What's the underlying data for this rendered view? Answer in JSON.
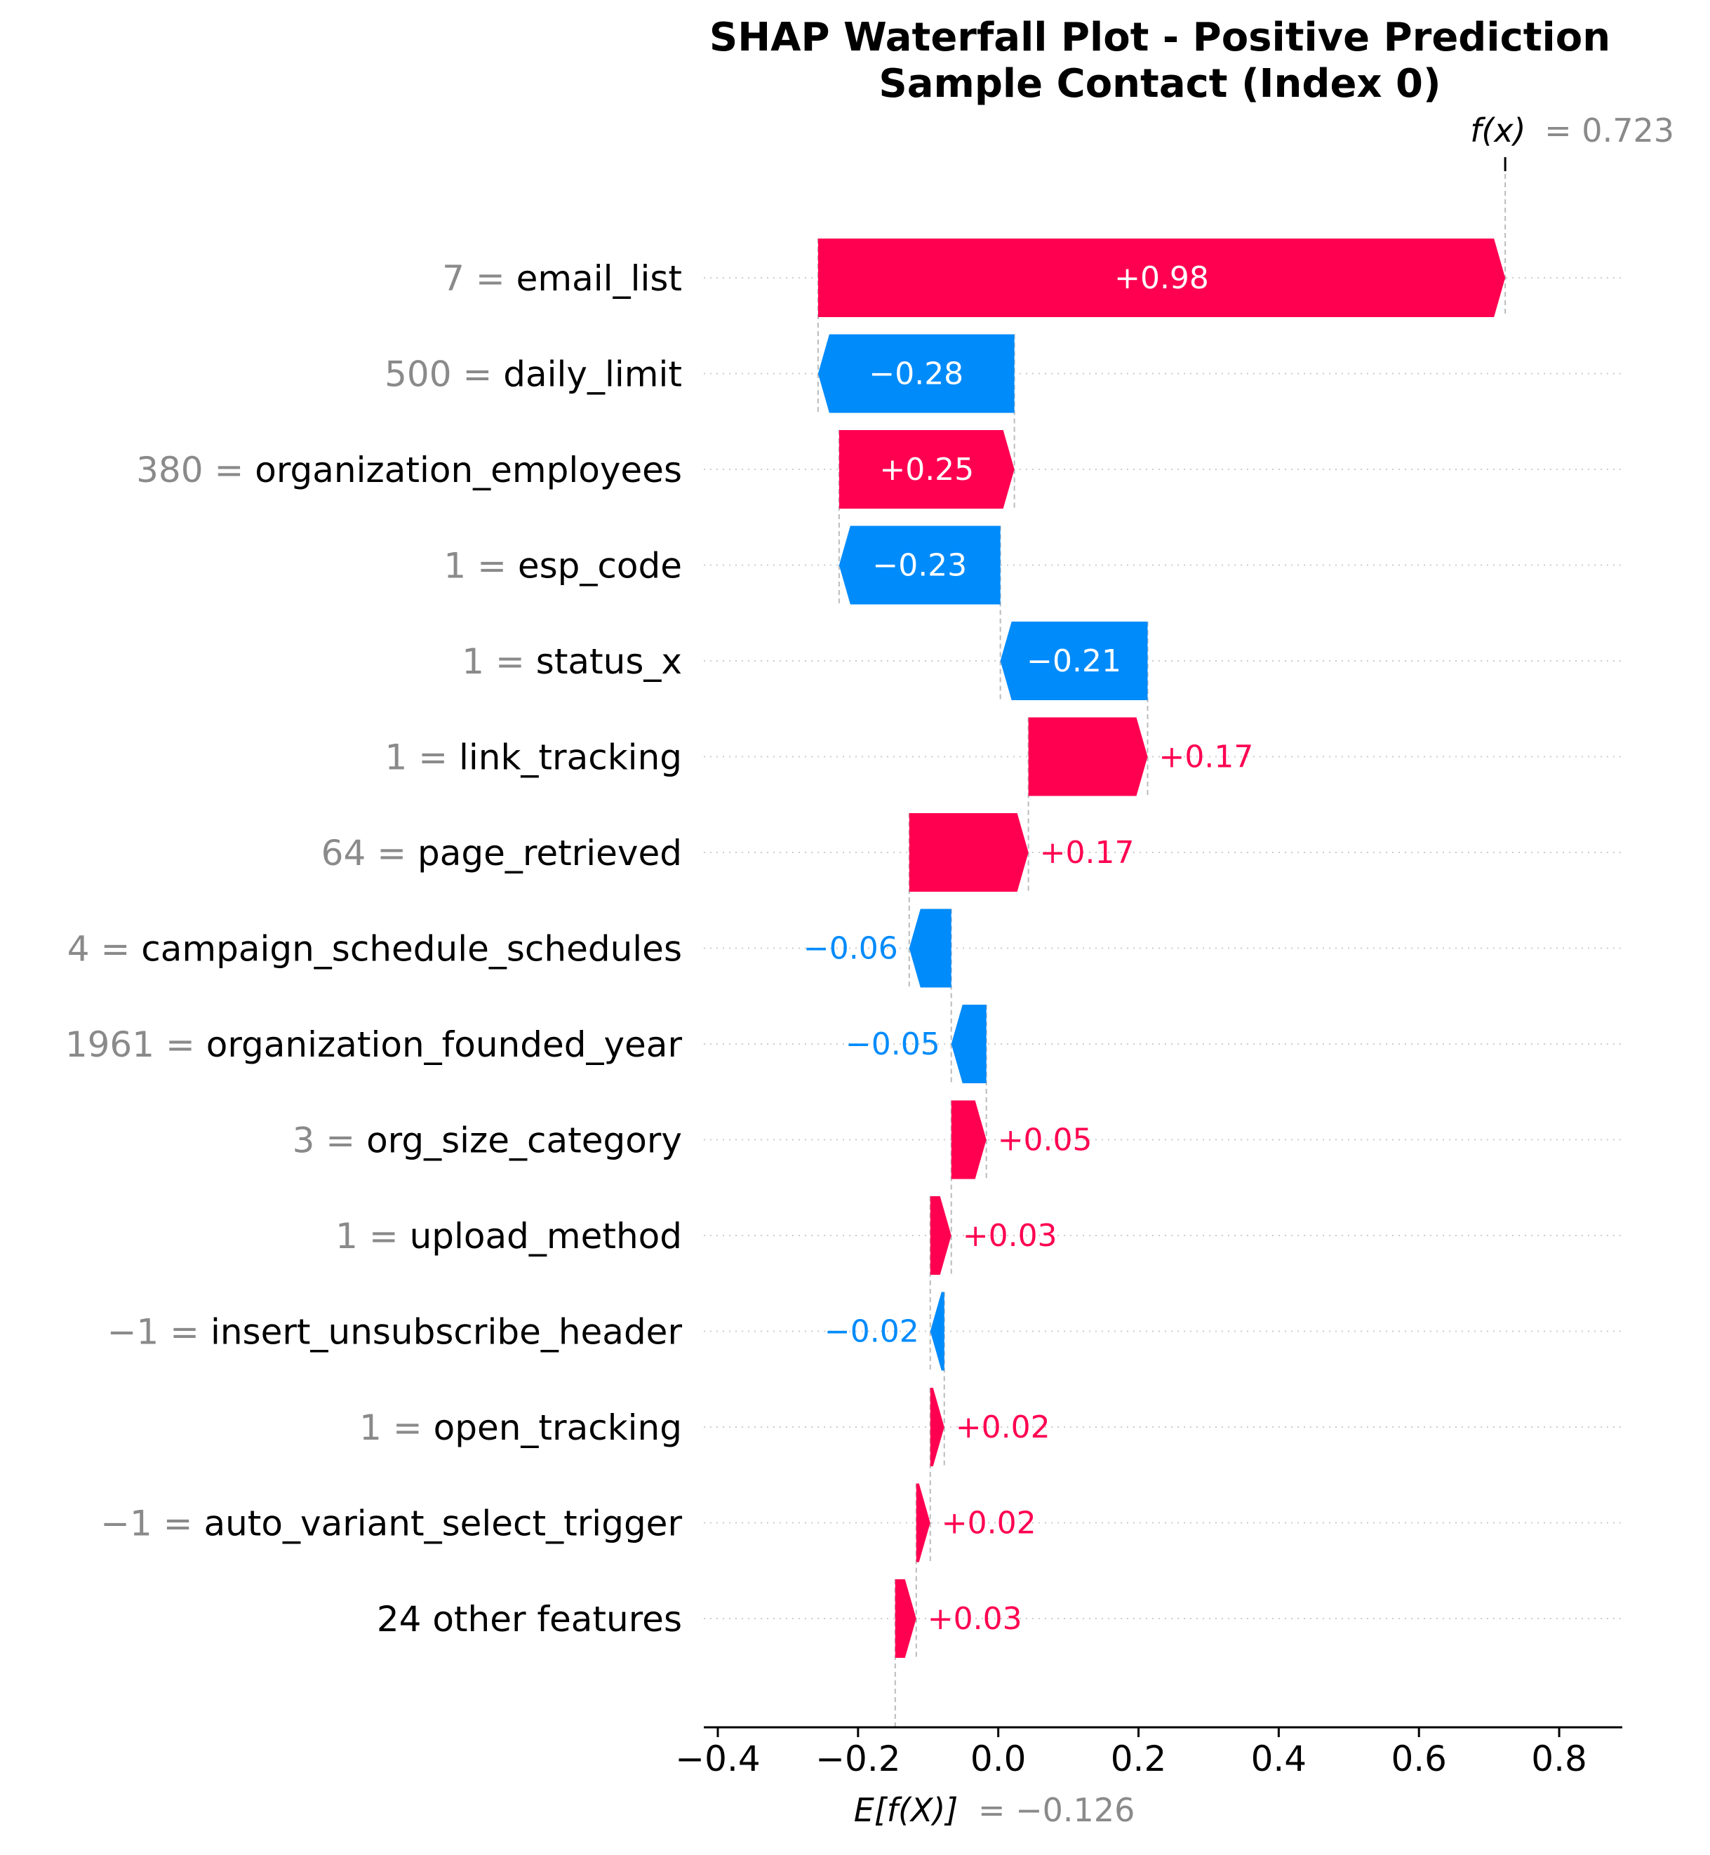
{
  "chart_data": {
    "type": "waterfall",
    "title_line1": "SHAP Waterfall Plot - Positive Prediction",
    "title_line2": "Sample Contact (Index 0)",
    "fx": {
      "label": "f(x)",
      "value_text": "= 0.723",
      "value": 0.723
    },
    "base": {
      "label": "E[f(X)]",
      "value_text": "= −0.126",
      "value": -0.126
    },
    "xlim": [
      -0.42,
      0.89
    ],
    "xticks": [
      -0.4,
      -0.2,
      0.0,
      0.2,
      0.4,
      0.6,
      0.8
    ],
    "xtick_labels": [
      "−0.4",
      "−0.2",
      "0.0",
      "0.2",
      "0.4",
      "0.6",
      "0.8"
    ],
    "colors": {
      "positive": "#ff0051",
      "negative": "#008bfb",
      "muted": "#8a8a8a"
    },
    "features": [
      {
        "value": "7",
        "name": "email_list",
        "shap": 0.98,
        "label": "+0.98"
      },
      {
        "value": "500",
        "name": "daily_limit",
        "shap": -0.28,
        "label": "−0.28"
      },
      {
        "value": "380",
        "name": "organization_employees",
        "shap": 0.25,
        "label": "+0.25"
      },
      {
        "value": "1",
        "name": "esp_code",
        "shap": -0.23,
        "label": "−0.23"
      },
      {
        "value": "1",
        "name": "status_x",
        "shap": -0.21,
        "label": "−0.21"
      },
      {
        "value": "1",
        "name": "link_tracking",
        "shap": 0.17,
        "label": "+0.17"
      },
      {
        "value": "64",
        "name": "page_retrieved",
        "shap": 0.17,
        "label": "+0.17"
      },
      {
        "value": "4",
        "name": "campaign_schedule_schedules",
        "shap": -0.06,
        "label": "−0.06"
      },
      {
        "value": "1961",
        "name": "organization_founded_year",
        "shap": -0.05,
        "label": "−0.05"
      },
      {
        "value": "3",
        "name": "org_size_category",
        "shap": 0.05,
        "label": "+0.05"
      },
      {
        "value": "1",
        "name": "upload_method",
        "shap": 0.03,
        "label": "+0.03"
      },
      {
        "value": "−1",
        "name": "insert_unsubscribe_header",
        "shap": -0.02,
        "label": "−0.02"
      },
      {
        "value": "1",
        "name": "open_tracking",
        "shap": 0.02,
        "label": "+0.02"
      },
      {
        "value": "−1",
        "name": "auto_variant_select_trigger",
        "shap": 0.02,
        "label": "+0.02"
      },
      {
        "value": "",
        "name": "24 other features",
        "shap": 0.03,
        "label": "+0.03"
      }
    ]
  }
}
